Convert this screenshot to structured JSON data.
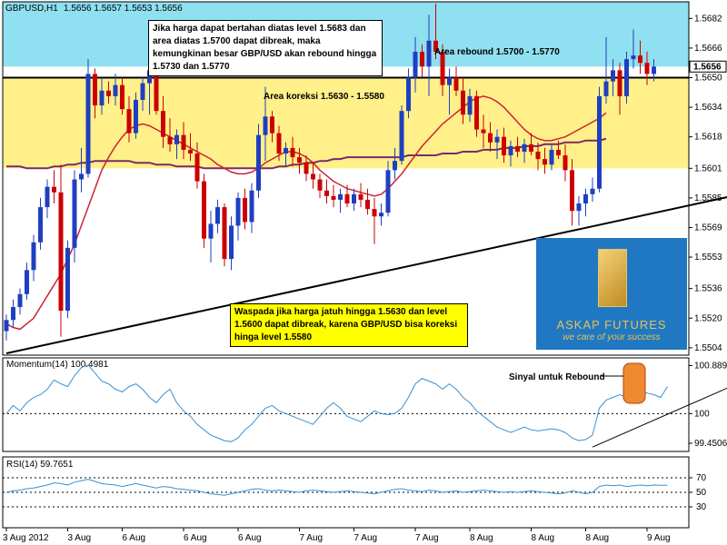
{
  "header": {
    "symbol": "GBPUSD,H1",
    "ohlc": "1.5656  1.5657  1.5653  1.5656",
    "last_price": "1.5656"
  },
  "annotations": {
    "top_note": "Jika harga dapat bertahan diatas level 1.5683 dan area diatas 1.5700 dapat dibreak, maka kemungkinan besar GBP/USD akan rebound hingga 1.5730 dan 1.5770",
    "rebound_area": "Area rebound  1.5700 - 1.5770",
    "correction_area": "Area koreksi  1.5630 - 1.5580",
    "bottom_note": "Waspada jika harga jatuh hingga 1.5630 dan level 1.5600 dapat dibreak, karena GBP/USD bisa koreksi hinga level 1.5580",
    "signal_label": "Sinyal untuk Rebound"
  },
  "logo": {
    "name": "ASKAP FUTURES",
    "tagline": "we care of your success"
  },
  "colors": {
    "bull": "#1f3fbf",
    "bear": "#cc0000",
    "rebound_zone": "#8fe0f0",
    "correction_zone": "#fff08a",
    "ma_fast": "#cc2233",
    "ma_slow": "#7a2a6a",
    "indicator_line": "#3a8fd0",
    "signal_box": "#f08a30"
  },
  "chart_data": [
    {
      "type": "candlestick",
      "title": "GBPUSD,H1",
      "y_axis_ticks": [
        1.5682,
        1.5666,
        1.565,
        1.5634,
        1.5618,
        1.5601,
        1.5585,
        1.5569,
        1.5553,
        1.5536,
        1.552,
        1.5504
      ],
      "ylim": [
        1.55,
        1.5691
      ],
      "horizontal_level": 1.565,
      "zones": [
        {
          "name": "rebound",
          "from": 1.5656,
          "to": 1.5691
        },
        {
          "name": "correction",
          "from": 1.5601,
          "to": 1.565
        }
      ],
      "trendline": [
        [
          0,
          1.5501
        ],
        [
          109,
          1.5588
        ]
      ],
      "candles": [
        [
          1.5513,
          1.5522,
          1.5508,
          1.5519
        ],
        [
          1.5519,
          1.553,
          1.5515,
          1.5526
        ],
        [
          1.5526,
          1.5536,
          1.5522,
          1.5533
        ],
        [
          1.5533,
          1.555,
          1.553,
          1.5546
        ],
        [
          1.5546,
          1.5565,
          1.554,
          1.5561
        ],
        [
          1.5561,
          1.5585,
          1.5557,
          1.558
        ],
        [
          1.558,
          1.5595,
          1.5574,
          1.5591
        ],
        [
          1.5591,
          1.56,
          1.5582,
          1.5588
        ],
        [
          1.5588,
          1.5603,
          1.551,
          1.5524
        ],
        [
          1.5524,
          1.5562,
          1.552,
          1.5558
        ],
        [
          1.5558,
          1.56,
          1.555,
          1.5595
        ],
        [
          1.5595,
          1.5612,
          1.5588,
          1.5598
        ],
        [
          1.5598,
          1.566,
          1.5596,
          1.5652
        ],
        [
          1.5652,
          1.5655,
          1.5628,
          1.5635
        ],
        [
          1.5635,
          1.565,
          1.563,
          1.5643
        ],
        [
          1.5643,
          1.5648,
          1.5636,
          1.564
        ],
        [
          1.564,
          1.5652,
          1.5635,
          1.5646
        ],
        [
          1.5646,
          1.565,
          1.563,
          1.5633
        ],
        [
          1.5633,
          1.564,
          1.5615,
          1.562
        ],
        [
          1.562,
          1.5642,
          1.5617,
          1.5638
        ],
        [
          1.5638,
          1.565,
          1.5632,
          1.5647
        ],
        [
          1.5647,
          1.5672,
          1.563,
          1.5654
        ],
        [
          1.5654,
          1.5656,
          1.563,
          1.5632
        ],
        [
          1.5632,
          1.564,
          1.5612,
          1.5618
        ],
        [
          1.5618,
          1.5628,
          1.561,
          1.5614
        ],
        [
          1.5614,
          1.5622,
          1.5606,
          1.5619
        ],
        [
          1.5619,
          1.5626,
          1.5606,
          1.5611
        ],
        [
          1.5611,
          1.562,
          1.5605,
          1.5609
        ],
        [
          1.5609,
          1.5615,
          1.559,
          1.5594
        ],
        [
          1.5594,
          1.5598,
          1.5558,
          1.5563
        ],
        [
          1.5563,
          1.5578,
          1.555,
          1.5571
        ],
        [
          1.5571,
          1.5584,
          1.5566,
          1.558
        ],
        [
          1.558,
          1.5582,
          1.5548,
          1.5552
        ],
        [
          1.5552,
          1.5575,
          1.5546,
          1.557
        ],
        [
          1.557,
          1.5588,
          1.5562,
          1.5585
        ],
        [
          1.5585,
          1.559,
          1.5568,
          1.5572
        ],
        [
          1.5572,
          1.5593,
          1.5566,
          1.5589
        ],
        [
          1.5589,
          1.5625,
          1.5585,
          1.5619
        ],
        [
          1.5619,
          1.5645,
          1.5605,
          1.5629
        ],
        [
          1.5629,
          1.5632,
          1.5615,
          1.562
        ],
        [
          1.562,
          1.5624,
          1.5605,
          1.5609
        ],
        [
          1.5609,
          1.5615,
          1.5602,
          1.5612
        ],
        [
          1.5612,
          1.5618,
          1.5602,
          1.5607
        ],
        [
          1.5607,
          1.5612,
          1.5598,
          1.5604
        ],
        [
          1.5604,
          1.5608,
          1.5594,
          1.5598
        ],
        [
          1.5598,
          1.5604,
          1.559,
          1.5595
        ],
        [
          1.5595,
          1.5598,
          1.5585,
          1.5589
        ],
        [
          1.5589,
          1.5595,
          1.5582,
          1.5586
        ],
        [
          1.5586,
          1.5592,
          1.558,
          1.5584
        ],
        [
          1.5584,
          1.559,
          1.5577,
          1.5587
        ],
        [
          1.5587,
          1.5592,
          1.558,
          1.5582
        ],
        [
          1.5582,
          1.559,
          1.5578,
          1.5587
        ],
        [
          1.5587,
          1.5593,
          1.558,
          1.5584
        ],
        [
          1.5584,
          1.559,
          1.5576,
          1.5579
        ],
        [
          1.5579,
          1.5585,
          1.556,
          1.5575
        ],
        [
          1.5575,
          1.5582,
          1.557,
          1.5577
        ],
        [
          1.5577,
          1.5605,
          1.5575,
          1.56
        ],
        [
          1.56,
          1.5612,
          1.5595,
          1.5605
        ],
        [
          1.5605,
          1.5635,
          1.5603,
          1.5632
        ],
        [
          1.5632,
          1.5655,
          1.5628,
          1.565
        ],
        [
          1.565,
          1.5672,
          1.5642,
          1.5664
        ],
        [
          1.5664,
          1.5668,
          1.565,
          1.5656
        ],
        [
          1.5656,
          1.5684,
          1.564,
          1.567
        ],
        [
          1.567,
          1.569,
          1.566,
          1.5664
        ],
        [
          1.5664,
          1.5668,
          1.564,
          1.5646
        ],
        [
          1.5646,
          1.5655,
          1.563,
          1.565
        ],
        [
          1.565,
          1.5656,
          1.564,
          1.5643
        ],
        [
          1.5643,
          1.565,
          1.5625,
          1.563
        ],
        [
          1.563,
          1.5644,
          1.5626,
          1.564
        ],
        [
          1.564,
          1.5643,
          1.5618,
          1.5622
        ],
        [
          1.5622,
          1.563,
          1.5612,
          1.562
        ],
        [
          1.562,
          1.5626,
          1.561,
          1.5615
        ],
        [
          1.5615,
          1.5622,
          1.5606,
          1.5618
        ],
        [
          1.5618,
          1.5623,
          1.5604,
          1.5608
        ],
        [
          1.5608,
          1.5616,
          1.5602,
          1.5613
        ],
        [
          1.5613,
          1.5618,
          1.5607,
          1.561
        ],
        [
          1.561,
          1.5617,
          1.5604,
          1.5614
        ],
        [
          1.5614,
          1.562,
          1.5608,
          1.561
        ],
        [
          1.561,
          1.5615,
          1.56,
          1.5606
        ],
        [
          1.5606,
          1.5612,
          1.5598,
          1.5603
        ],
        [
          1.5603,
          1.5614,
          1.56,
          1.5611
        ],
        [
          1.5611,
          1.5616,
          1.5606,
          1.5608
        ],
        [
          1.5608,
          1.5614,
          1.5594,
          1.56
        ],
        [
          1.56,
          1.5606,
          1.557,
          1.5578
        ],
        [
          1.5578,
          1.5586,
          1.557,
          1.5582
        ],
        [
          1.5582,
          1.559,
          1.5575,
          1.5587
        ],
        [
          1.5587,
          1.5596,
          1.5583,
          1.559
        ],
        [
          1.559,
          1.5645,
          1.5588,
          1.564
        ],
        [
          1.564,
          1.5672,
          1.5636,
          1.5648
        ],
        [
          1.5648,
          1.566,
          1.564,
          1.5654
        ],
        [
          1.5654,
          1.5658,
          1.563,
          1.564
        ],
        [
          1.564,
          1.5664,
          1.5636,
          1.566
        ],
        [
          1.566,
          1.5676,
          1.5655,
          1.5662
        ],
        [
          1.5662,
          1.567,
          1.5652,
          1.5658
        ],
        [
          1.5658,
          1.5664,
          1.5646,
          1.5652
        ],
        [
          1.5652,
          1.566,
          1.5648,
          1.5656
        ]
      ],
      "ma_fast": [
        1.5517,
        1.5515,
        1.5514,
        1.5517,
        1.552,
        1.5526,
        1.5532,
        1.5538,
        1.5544,
        1.5552,
        1.556,
        1.557,
        1.558,
        1.559,
        1.56,
        1.5607,
        1.5613,
        1.5618,
        1.5622,
        1.5624,
        1.5625,
        1.5624,
        1.5622,
        1.562,
        1.5618,
        1.5616,
        1.5614,
        1.5612,
        1.561,
        1.5608,
        1.5606,
        1.5603,
        1.5601,
        1.5599,
        1.5598,
        1.5598,
        1.5599,
        1.5601,
        1.5604,
        1.5606,
        1.5608,
        1.561,
        1.561,
        1.5609,
        1.5607,
        1.5604,
        1.56,
        1.5597,
        1.5594,
        1.5592,
        1.559,
        1.5589,
        1.5588,
        1.5587,
        1.5586,
        1.5587,
        1.559,
        1.5594,
        1.5598,
        1.5603,
        1.5608,
        1.5613,
        1.5617,
        1.5621,
        1.5625,
        1.5628,
        1.5631,
        1.5634,
        1.5637,
        1.5639,
        1.564,
        1.5639,
        1.5637,
        1.5634,
        1.563,
        1.5626,
        1.5622,
        1.5619,
        1.5617,
        1.5616,
        1.5616,
        1.5617,
        1.5618,
        1.562,
        1.5622,
        1.5624,
        1.5626,
        1.5628,
        1.5631
      ],
      "ma_slow": [
        1.5602,
        1.5602,
        1.5602,
        1.5601,
        1.5601,
        1.5601,
        1.5601,
        1.5602,
        1.5602,
        1.5603,
        1.5603,
        1.5604,
        1.5604,
        1.5605,
        1.5605,
        1.5605,
        1.5605,
        1.5605,
        1.5605,
        1.5604,
        1.5604,
        1.5604,
        1.5603,
        1.5603,
        1.5603,
        1.5602,
        1.5602,
        1.5602,
        1.5602,
        1.5601,
        1.5601,
        1.5601,
        1.5601,
        1.5601,
        1.5601,
        1.5601,
        1.5601,
        1.5601,
        1.5601,
        1.5601,
        1.5602,
        1.5602,
        1.5603,
        1.5603,
        1.5604,
        1.5604,
        1.5605,
        1.5605,
        1.5606,
        1.5606,
        1.5607,
        1.5607,
        1.5607,
        1.5607,
        1.5607,
        1.5607,
        1.5607,
        1.5607,
        1.5607,
        1.5608,
        1.5608,
        1.5608,
        1.5608,
        1.5608,
        1.5609,
        1.5609,
        1.5609,
        1.561,
        1.561,
        1.561,
        1.5611,
        1.5611,
        1.5611,
        1.5612,
        1.5612,
        1.5612,
        1.5613,
        1.5613,
        1.5613,
        1.5614,
        1.5614,
        1.5614,
        1.5615,
        1.5615,
        1.5615,
        1.5616,
        1.5616,
        1.5616,
        1.5617
      ]
    },
    {
      "type": "line",
      "title": "Momentum(14) 100.4981",
      "y_axis_ticks": [
        100.8892,
        100,
        99.4506
      ],
      "ylim": [
        99.35,
        100.98
      ],
      "reference_level": 100,
      "trendline": [
        [
          86,
          99.38
        ],
        [
          109,
          100.65
        ]
      ],
      "values": [
        100.0,
        100.15,
        100.05,
        100.2,
        100.3,
        100.35,
        100.45,
        100.62,
        100.55,
        100.5,
        100.7,
        100.85,
        100.9,
        100.75,
        100.6,
        100.55,
        100.45,
        100.4,
        100.5,
        100.55,
        100.45,
        100.3,
        100.2,
        100.35,
        100.45,
        100.2,
        100.05,
        99.95,
        99.8,
        99.7,
        99.6,
        99.55,
        99.5,
        99.48,
        99.55,
        99.7,
        99.8,
        99.95,
        100.1,
        100.15,
        100.05,
        100.0,
        99.95,
        99.9,
        99.85,
        99.8,
        99.95,
        100.1,
        100.2,
        100.1,
        99.95,
        99.9,
        99.85,
        99.95,
        100.05,
        100.0,
        99.98,
        100.0,
        100.1,
        100.3,
        100.55,
        100.65,
        100.6,
        100.55,
        100.45,
        100.55,
        100.45,
        100.3,
        100.2,
        100.05,
        99.95,
        99.85,
        99.75,
        99.7,
        99.65,
        99.7,
        99.75,
        99.7,
        99.68,
        99.7,
        99.72,
        99.7,
        99.65,
        99.55,
        99.5,
        99.52,
        99.6,
        100.1,
        100.25,
        100.3,
        100.35,
        100.3,
        100.35,
        100.4,
        100.38,
        100.35,
        100.3,
        100.5
      ]
    },
    {
      "type": "line",
      "title": "RSI(14) 59.7651",
      "y_axis_ticks": [
        70,
        50,
        30
      ],
      "ylim": [
        30,
        70
      ],
      "levels": [
        70,
        50,
        30
      ],
      "values": [
        50,
        52,
        53,
        55,
        56,
        58,
        60,
        63,
        62,
        60,
        64,
        66,
        68,
        65,
        62,
        61,
        60,
        58,
        60,
        62,
        60,
        58,
        56,
        58,
        57,
        55,
        54,
        53,
        52,
        50,
        48,
        47,
        46,
        48,
        50,
        52,
        54,
        55,
        53,
        52,
        53,
        52,
        51,
        50,
        52,
        53,
        52,
        51,
        50,
        51,
        52,
        51,
        50,
        49,
        48,
        50,
        52,
        54,
        55,
        53,
        52,
        51,
        53,
        52,
        50,
        51,
        52,
        50,
        51,
        52,
        53,
        52,
        51,
        50,
        51,
        50,
        51,
        52,
        51,
        50,
        49,
        48,
        49,
        52,
        50,
        48,
        50,
        58,
        60,
        59,
        60,
        58,
        59,
        60,
        59,
        60,
        59.8,
        59.7
      ]
    }
  ],
  "x_axis": {
    "labels": [
      "3 Aug 2012",
      "3 Aug",
      "6 Aug",
      "6 Aug",
      "6 Aug",
      "7 Aug",
      "7 Aug",
      "7 Aug",
      "8 Aug",
      "8 Aug",
      "8 Aug",
      "9 Aug"
    ]
  }
}
